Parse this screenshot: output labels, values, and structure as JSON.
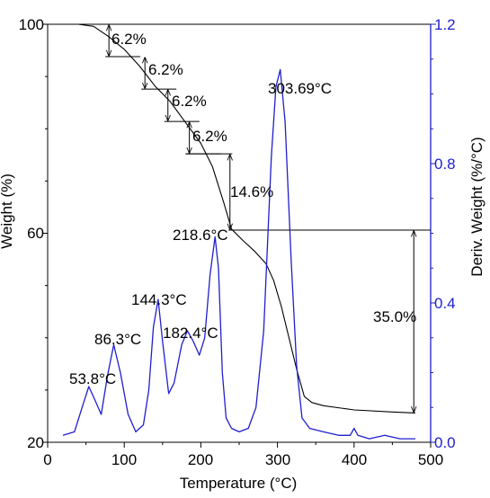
{
  "chart_data": {
    "type": "line",
    "xlabel": "Temperature (°C)",
    "ylabel_left": "Weight (%)",
    "ylabel_right": "Deriv. Weight (%/°C)",
    "xlim": [
      0,
      500
    ],
    "ylim_left": [
      20,
      100
    ],
    "ylim_right": [
      0.0,
      1.2
    ],
    "x_ticks": [
      "0",
      "100",
      "200",
      "300",
      "400",
      "500"
    ],
    "y_left_ticks": [
      "20",
      "60",
      "100"
    ],
    "y_right_ticks": [
      "0.0",
      "0.4",
      "0.8",
      "1.2"
    ],
    "colors": {
      "weight": "#000000",
      "deriv": "#1f1fcf",
      "right_axis": "#1f1fcf"
    },
    "series": [
      {
        "axis": "left",
        "points": [
          [
            20,
            100
          ],
          [
            40,
            100
          ],
          [
            60,
            99.6
          ],
          [
            80,
            97.6
          ],
          [
            100,
            95.2
          ],
          [
            120,
            92.0
          ],
          [
            140,
            88.2
          ],
          [
            160,
            85.2
          ],
          [
            180,
            81.2
          ],
          [
            200,
            77.2
          ],
          [
            215,
            72.8
          ],
          [
            230,
            65.8
          ],
          [
            240,
            60.8
          ],
          [
            255,
            58.6
          ],
          [
            270,
            56.6
          ],
          [
            285,
            54.2
          ],
          [
            295,
            51.0
          ],
          [
            305,
            46.0
          ],
          [
            315,
            40.0
          ],
          [
            325,
            34.0
          ],
          [
            335,
            28.8
          ],
          [
            345,
            27.6
          ],
          [
            360,
            27.0
          ],
          [
            400,
            26.2
          ],
          [
            450,
            25.8
          ],
          [
            480,
            25.6
          ]
        ]
      },
      {
        "axis": "right",
        "points": [
          [
            20,
            0.02
          ],
          [
            35,
            0.03
          ],
          [
            45,
            0.1
          ],
          [
            53.8,
            0.16
          ],
          [
            62,
            0.12
          ],
          [
            70,
            0.08
          ],
          [
            78,
            0.19
          ],
          [
            86.3,
            0.28
          ],
          [
            95,
            0.2
          ],
          [
            105,
            0.08
          ],
          [
            115,
            0.03
          ],
          [
            125,
            0.05
          ],
          [
            132,
            0.15
          ],
          [
            138,
            0.33
          ],
          [
            144.3,
            0.41
          ],
          [
            150,
            0.29
          ],
          [
            158,
            0.14
          ],
          [
            165,
            0.17
          ],
          [
            175,
            0.28
          ],
          [
            182.4,
            0.32
          ],
          [
            190,
            0.29
          ],
          [
            198,
            0.25
          ],
          [
            205,
            0.3
          ],
          [
            212,
            0.48
          ],
          [
            218.6,
            0.59
          ],
          [
            223,
            0.5
          ],
          [
            228,
            0.2
          ],
          [
            233,
            0.07
          ],
          [
            240,
            0.04
          ],
          [
            250,
            0.03
          ],
          [
            262,
            0.04
          ],
          [
            272,
            0.1
          ],
          [
            282,
            0.32
          ],
          [
            292,
            0.82
          ],
          [
            298,
            1.02
          ],
          [
            303.69,
            1.07
          ],
          [
            310,
            0.92
          ],
          [
            318,
            0.52
          ],
          [
            325,
            0.22
          ],
          [
            332,
            0.07
          ],
          [
            342,
            0.04
          ],
          [
            360,
            0.03
          ],
          [
            380,
            0.02
          ],
          [
            395,
            0.02
          ],
          [
            400,
            0.04
          ],
          [
            405,
            0.02
          ],
          [
            420,
            0.01
          ],
          [
            440,
            0.02
          ],
          [
            460,
            0.01
          ],
          [
            480,
            0.01
          ]
        ]
      }
    ],
    "step_annotations": [
      {
        "label": "6.2%",
        "x": 80,
        "y_from": 100,
        "y_to": 93.8
      },
      {
        "label": "6.2%",
        "x": 127,
        "y_from": 93.8,
        "y_to": 87.6
      },
      {
        "label": "6.2%",
        "x": 157,
        "y_from": 87.6,
        "y_to": 81.4
      },
      {
        "label": "6.2%",
        "x": 185,
        "y_from": 81.4,
        "y_to": 75.2
      },
      {
        "label": "14.6%",
        "x": 238,
        "y_from": 75.2,
        "y_to": 60.6
      },
      {
        "label": "35.0%",
        "x": 478,
        "y_from": 60.6,
        "y_to": 25.6
      }
    ],
    "peak_labels": [
      "53.8°C",
      "86.3°C",
      "144.3°C",
      "182.4°C",
      "218.6°C",
      "303.69°C"
    ]
  }
}
